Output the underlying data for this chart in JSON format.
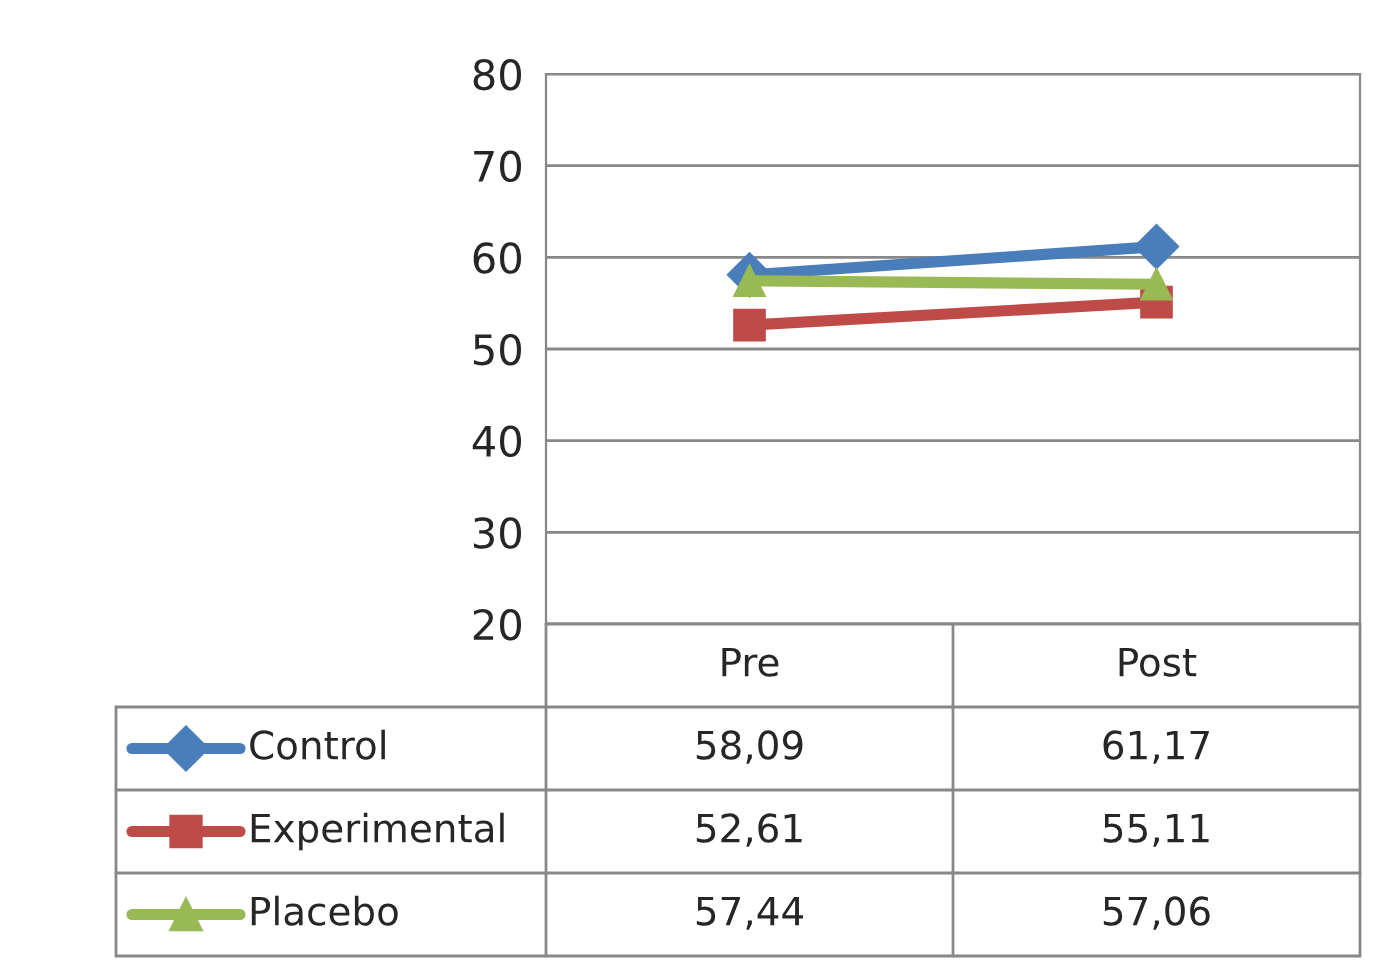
{
  "chart_data": {
    "type": "line",
    "categories": [
      "Pre",
      "Post"
    ],
    "ylim": [
      20,
      80
    ],
    "yticks": [
      20,
      30,
      40,
      50,
      60,
      70,
      80
    ],
    "grid": "y",
    "legend": "bottom",
    "series": [
      {
        "name": "Control",
        "color": "#4a7ebb",
        "marker": "diamond",
        "values": [
          58.09,
          61.17
        ],
        "value_labels": [
          "58,09",
          "61,17"
        ]
      },
      {
        "name": "Experimental",
        "color": "#be4b48",
        "marker": "square",
        "values": [
          52.61,
          55.11
        ],
        "value_labels": [
          "52,61",
          "55,11"
        ]
      },
      {
        "name": "Placebo",
        "color": "#98b954",
        "marker": "triangle",
        "values": [
          57.44,
          57.06
        ],
        "value_labels": [
          "57,44",
          "57,06"
        ]
      }
    ]
  }
}
